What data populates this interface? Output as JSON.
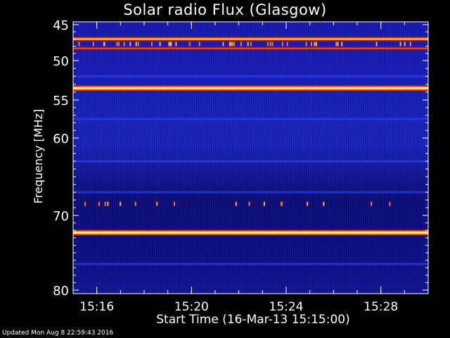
{
  "colors": {
    "background": "#000000",
    "axes": "#ffffff",
    "colormap": [
      "#000000",
      "#0a0a6e",
      "#1e28c8",
      "#3c64ff",
      "#c81e1e",
      "#ff8c1e",
      "#ffff64",
      "#ffffff"
    ]
  },
  "chart_data": {
    "type": "heatmap",
    "title": "Solar radio Flux (Glasgow)",
    "xlabel": "Start Time (16-Mar-13 15:15:00)",
    "ylabel": "Frequency [MHz]",
    "xlim": [
      "15:15:00",
      "15:30:00"
    ],
    "ylim": [
      45,
      80
    ],
    "y_axis_inverted": true,
    "x_ticks": [
      "15:16",
      "15:20",
      "15:24",
      "15:28"
    ],
    "y_ticks": [
      45,
      50,
      55,
      60,
      70,
      80
    ],
    "bright_bands_mhz": [
      {
        "frequency": 47.0,
        "intensity": "high"
      },
      {
        "frequency": 48.3,
        "intensity": "medium"
      },
      {
        "frequency": 53.5,
        "intensity": "very high"
      },
      {
        "frequency": 72.3,
        "intensity": "very high"
      }
    ],
    "dim_bands_mhz": [
      52.0,
      57.5,
      63.0,
      67.0,
      76.5
    ],
    "intermittent_spikes_mhz": [
      47.7,
      68.5
    ]
  },
  "footer": {
    "updated": "Updated Mon Aug  8 22:59:43 2016"
  }
}
